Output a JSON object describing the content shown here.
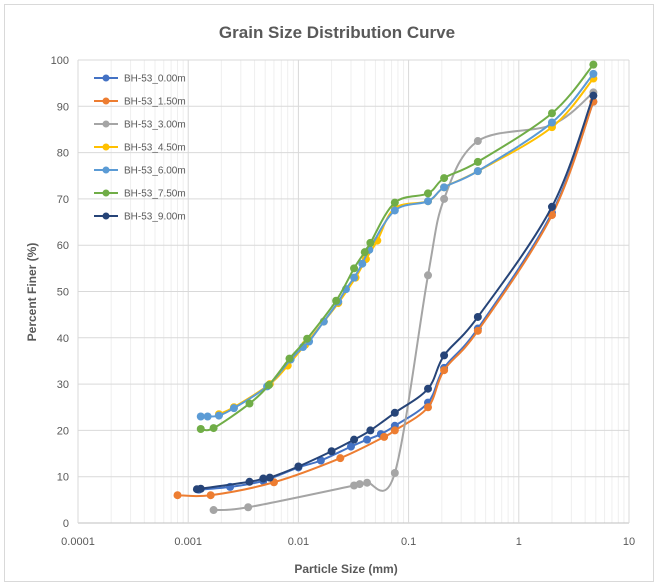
{
  "chart_data": {
    "type": "scatter",
    "title": "Grain Size Distribution Curve",
    "xlabel": "Particle Size (mm)",
    "ylabel": "Percent Finer (%)",
    "x_scale": "log",
    "xlim": [
      0.0001,
      10
    ],
    "ylim": [
      0,
      100
    ],
    "x_ticks": [
      0.0001,
      0.001,
      0.01,
      0.1,
      1,
      10
    ],
    "x_tick_labels": [
      "0.0001",
      "0.001",
      "0.01",
      "0.1",
      "1",
      "10"
    ],
    "y_ticks": [
      0,
      10,
      20,
      30,
      40,
      50,
      60,
      70,
      80,
      90,
      100
    ],
    "y_tick_labels": [
      "0",
      "10",
      "20",
      "30",
      "40",
      "50",
      "60",
      "70",
      "80",
      "90",
      "100"
    ],
    "grid": true,
    "legend_position": "top-left",
    "series": [
      {
        "name": "BH-53_0.00m",
        "color": "#4472C4",
        "points": [
          [
            0.00125,
            7.2
          ],
          [
            0.0024,
            7.8
          ],
          [
            0.0048,
            9.1
          ],
          [
            0.01,
            12.0
          ],
          [
            0.016,
            13.5
          ],
          [
            0.03,
            16.5
          ],
          [
            0.042,
            18.0
          ],
          [
            0.056,
            19.2
          ],
          [
            0.075,
            21.0
          ],
          [
            0.15,
            26.0
          ],
          [
            0.21,
            33.5
          ],
          [
            0.425,
            42.0
          ],
          [
            2.0,
            67.0
          ],
          [
            4.75,
            91.0
          ]
        ]
      },
      {
        "name": "BH-53_1.50m",
        "color": "#ED7D31",
        "points": [
          [
            0.0008,
            6.0
          ],
          [
            0.0016,
            6.0
          ],
          [
            0.006,
            8.8
          ],
          [
            0.024,
            14.0
          ],
          [
            0.06,
            18.6
          ],
          [
            0.075,
            20.0
          ],
          [
            0.15,
            25.0
          ],
          [
            0.21,
            33.0
          ],
          [
            0.425,
            41.5
          ],
          [
            2.0,
            66.5
          ],
          [
            4.75,
            91.0
          ]
        ]
      },
      {
        "name": "BH-53_3.00m",
        "color": "#A5A5A5",
        "points": [
          [
            0.0017,
            2.8
          ],
          [
            0.0035,
            3.4
          ],
          [
            0.032,
            8.1
          ],
          [
            0.036,
            8.4
          ],
          [
            0.042,
            8.7
          ],
          [
            0.075,
            10.8
          ],
          [
            0.15,
            53.5
          ],
          [
            0.21,
            70.0
          ],
          [
            0.425,
            82.5
          ],
          [
            2.0,
            86.0
          ],
          [
            4.75,
            93.0
          ]
        ]
      },
      {
        "name": "BH-53_4.50m",
        "color": "#FFC000",
        "points": [
          [
            0.0019,
            23.5
          ],
          [
            0.0026,
            25.0
          ],
          [
            0.0055,
            30.0
          ],
          [
            0.008,
            34.0
          ],
          [
            0.0115,
            38.5
          ],
          [
            0.017,
            43.5
          ],
          [
            0.023,
            47.5
          ],
          [
            0.033,
            53.0
          ],
          [
            0.041,
            57.0
          ],
          [
            0.052,
            61.0
          ],
          [
            0.075,
            68.0
          ],
          [
            0.15,
            69.5
          ],
          [
            0.21,
            72.5
          ],
          [
            0.425,
            76.0
          ],
          [
            2.0,
            85.5
          ],
          [
            4.75,
            96.0
          ]
        ]
      },
      {
        "name": "BH-53_6.00m",
        "color": "#5B9BD5",
        "points": [
          [
            0.0013,
            23.0
          ],
          [
            0.0015,
            23.0
          ],
          [
            0.0019,
            23.2
          ],
          [
            0.0026,
            24.8
          ],
          [
            0.0052,
            29.5
          ],
          [
            0.0085,
            35.3
          ],
          [
            0.011,
            38.0
          ],
          [
            0.0125,
            39.2
          ],
          [
            0.017,
            43.5
          ],
          [
            0.023,
            47.8
          ],
          [
            0.027,
            50.5
          ],
          [
            0.032,
            53.0
          ],
          [
            0.038,
            56.0
          ],
          [
            0.044,
            59.0
          ],
          [
            0.075,
            67.5
          ],
          [
            0.15,
            69.5
          ],
          [
            0.21,
            72.5
          ],
          [
            0.425,
            76.0
          ],
          [
            2.0,
            86.5
          ],
          [
            4.75,
            97.0
          ]
        ]
      },
      {
        "name": "BH-53_7.50m",
        "color": "#70AD47",
        "points": [
          [
            0.0013,
            20.3
          ],
          [
            0.0017,
            20.5
          ],
          [
            0.0036,
            25.8
          ],
          [
            0.0054,
            29.8
          ],
          [
            0.0083,
            35.5
          ],
          [
            0.012,
            39.8
          ],
          [
            0.022,
            48.0
          ],
          [
            0.032,
            55.0
          ],
          [
            0.04,
            58.5
          ],
          [
            0.045,
            60.5
          ],
          [
            0.075,
            69.2
          ],
          [
            0.15,
            71.2
          ],
          [
            0.21,
            74.5
          ],
          [
            0.425,
            78.0
          ],
          [
            2.0,
            88.5
          ],
          [
            4.75,
            99.0
          ]
        ]
      },
      {
        "name": "BH-53_9.00m",
        "color": "#264478",
        "points": [
          [
            0.0012,
            7.3
          ],
          [
            0.0013,
            7.4
          ],
          [
            0.0036,
            8.9
          ],
          [
            0.0048,
            9.6
          ],
          [
            0.0055,
            9.8
          ],
          [
            0.01,
            12.2
          ],
          [
            0.02,
            15.5
          ],
          [
            0.032,
            18.0
          ],
          [
            0.045,
            20.0
          ],
          [
            0.075,
            23.8
          ],
          [
            0.15,
            29.0
          ],
          [
            0.21,
            36.2
          ],
          [
            0.425,
            44.5
          ],
          [
            2.0,
            68.3
          ],
          [
            4.75,
            92.3
          ]
        ]
      }
    ]
  }
}
